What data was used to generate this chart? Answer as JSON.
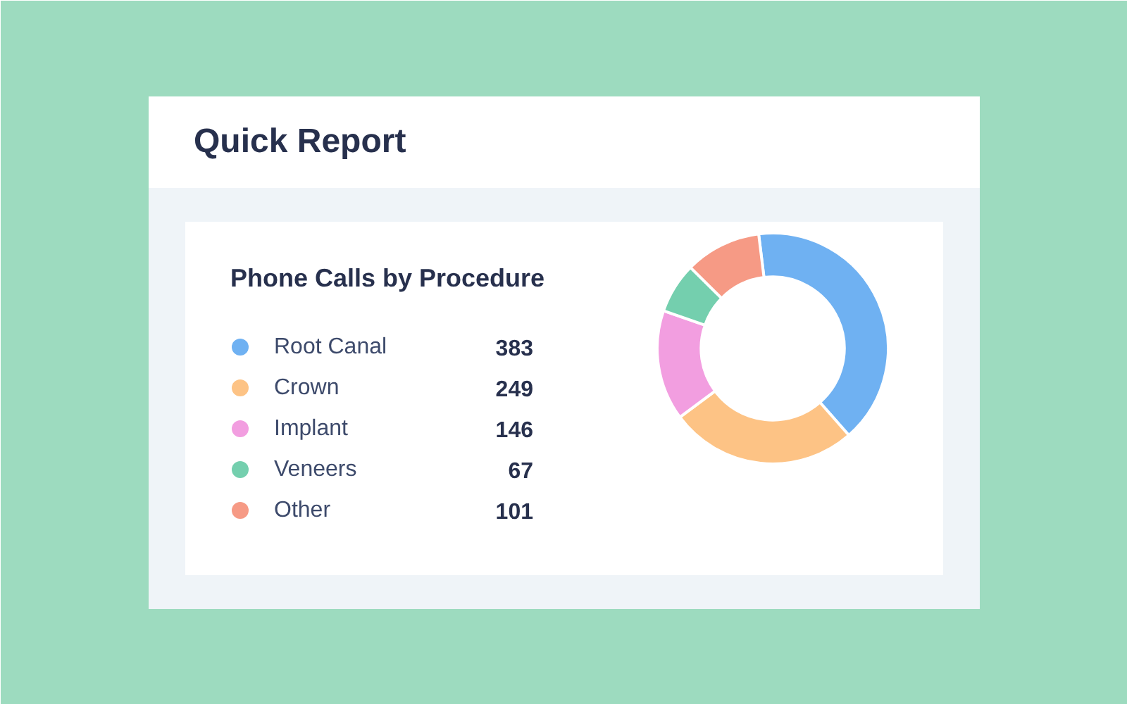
{
  "chart_data": {
    "type": "donut",
    "title": "Quick Report",
    "subtitle": "Phone Calls by Procedure",
    "categories": [
      "Root Canal",
      "Crown",
      "Implant",
      "Veneers",
      "Other"
    ],
    "values": [
      383,
      249,
      146,
      67,
      101
    ],
    "colors": [
      "#6fb1f2",
      "#fdc385",
      "#f29ee0",
      "#74cfae",
      "#f69a85"
    ],
    "data_labels": true,
    "legend": "left"
  }
}
